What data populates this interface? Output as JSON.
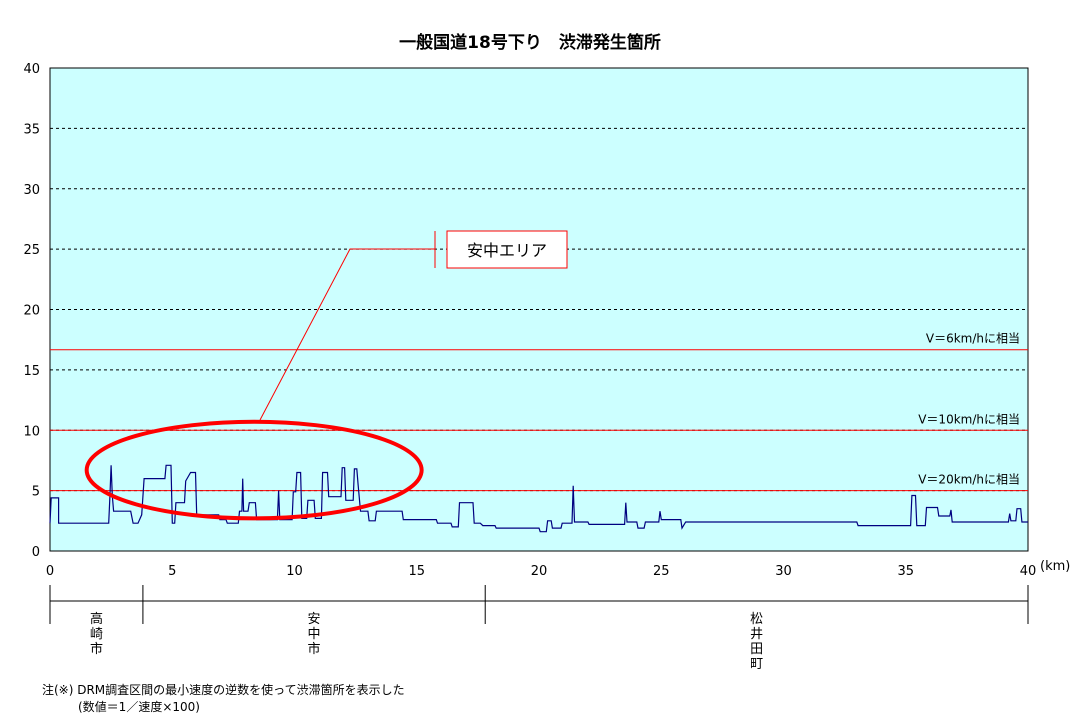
{
  "chart_data": {
    "type": "line",
    "title": "一般国道18号下り　渋滞発生箇所",
    "xlabel": "",
    "ylabel": "",
    "x_unit": "(km)",
    "xlim": [
      0,
      40
    ],
    "ylim": [
      0,
      40
    ],
    "x_ticks": [
      0,
      5,
      10,
      15,
      20,
      25,
      30,
      35,
      40
    ],
    "y_ticks": [
      0,
      5,
      10,
      15,
      20,
      25,
      30,
      35,
      40
    ],
    "grid": "horizontal dashed",
    "plot_background": "#ccffff",
    "series": [
      {
        "color": "#000080",
        "points": [
          [
            0.0,
            2.3
          ],
          [
            0.05,
            4.4
          ],
          [
            0.35,
            4.4
          ],
          [
            0.35,
            2.3
          ],
          [
            2.4,
            2.3
          ],
          [
            2.45,
            4.5
          ],
          [
            2.5,
            7.1
          ],
          [
            2.55,
            4.6
          ],
          [
            2.6,
            3.3
          ],
          [
            3.3,
            3.3
          ],
          [
            3.4,
            2.3
          ],
          [
            3.6,
            2.3
          ],
          [
            3.75,
            3.0
          ],
          [
            3.85,
            6.0
          ],
          [
            4.7,
            6.0
          ],
          [
            4.75,
            7.1
          ],
          [
            4.95,
            7.1
          ],
          [
            5.0,
            2.3
          ],
          [
            5.1,
            2.3
          ],
          [
            5.15,
            4.0
          ],
          [
            5.5,
            4.0
          ],
          [
            5.55,
            5.8
          ],
          [
            5.75,
            6.5
          ],
          [
            5.95,
            6.5
          ],
          [
            6.0,
            3.0
          ],
          [
            6.9,
            3.0
          ],
          [
            6.95,
            2.6
          ],
          [
            7.2,
            2.6
          ],
          [
            7.25,
            2.3
          ],
          [
            7.7,
            2.3
          ],
          [
            7.75,
            3.3
          ],
          [
            7.85,
            3.3
          ],
          [
            7.88,
            6.0
          ],
          [
            7.92,
            3.3
          ],
          [
            8.1,
            3.3
          ],
          [
            8.15,
            4.0
          ],
          [
            8.4,
            4.0
          ],
          [
            8.45,
            2.6
          ],
          [
            9.3,
            2.6
          ],
          [
            9.35,
            5.0
          ],
          [
            9.4,
            2.6
          ],
          [
            9.9,
            2.6
          ],
          [
            9.95,
            4.9
          ],
          [
            10.05,
            4.9
          ],
          [
            10.1,
            6.5
          ],
          [
            10.25,
            6.5
          ],
          [
            10.3,
            2.7
          ],
          [
            10.5,
            2.7
          ],
          [
            10.55,
            4.2
          ],
          [
            10.8,
            4.2
          ],
          [
            10.85,
            2.7
          ],
          [
            11.1,
            2.7
          ],
          [
            11.15,
            6.5
          ],
          [
            11.35,
            6.5
          ],
          [
            11.4,
            4.5
          ],
          [
            11.9,
            4.5
          ],
          [
            11.95,
            6.9
          ],
          [
            12.05,
            6.9
          ],
          [
            12.1,
            4.2
          ],
          [
            12.4,
            4.2
          ],
          [
            12.45,
            6.8
          ],
          [
            12.55,
            6.8
          ],
          [
            12.6,
            5.5
          ],
          [
            12.7,
            3.3
          ],
          [
            13.0,
            3.3
          ],
          [
            13.05,
            2.5
          ],
          [
            13.3,
            2.5
          ],
          [
            13.35,
            3.3
          ],
          [
            14.4,
            3.3
          ],
          [
            14.45,
            2.6
          ],
          [
            15.8,
            2.6
          ],
          [
            15.85,
            2.3
          ],
          [
            16.4,
            2.3
          ],
          [
            16.45,
            2.0
          ],
          [
            16.7,
            2.0
          ],
          [
            16.75,
            4.0
          ],
          [
            17.3,
            4.0
          ],
          [
            17.35,
            2.3
          ],
          [
            17.6,
            2.3
          ],
          [
            17.7,
            2.1
          ],
          [
            18.2,
            2.1
          ],
          [
            18.25,
            1.9
          ],
          [
            20.0,
            1.9
          ],
          [
            20.05,
            1.6
          ],
          [
            20.3,
            1.6
          ],
          [
            20.35,
            2.5
          ],
          [
            20.5,
            2.5
          ],
          [
            20.55,
            1.9
          ],
          [
            20.9,
            1.9
          ],
          [
            20.95,
            2.3
          ],
          [
            21.35,
            2.3
          ],
          [
            21.4,
            5.4
          ],
          [
            21.45,
            2.4
          ],
          [
            22.0,
            2.4
          ],
          [
            22.05,
            2.2
          ],
          [
            23.5,
            2.2
          ],
          [
            23.55,
            4.0
          ],
          [
            23.6,
            2.4
          ],
          [
            24.0,
            2.4
          ],
          [
            24.05,
            1.9
          ],
          [
            24.3,
            1.9
          ],
          [
            24.35,
            2.4
          ],
          [
            24.9,
            2.4
          ],
          [
            24.95,
            3.3
          ],
          [
            25.0,
            2.6
          ],
          [
            25.8,
            2.6
          ],
          [
            25.85,
            1.9
          ],
          [
            26.0,
            2.4
          ],
          [
            33.0,
            2.4
          ],
          [
            33.05,
            2.1
          ],
          [
            35.2,
            2.1
          ],
          [
            35.25,
            4.6
          ],
          [
            35.4,
            4.6
          ],
          [
            35.45,
            2.1
          ],
          [
            35.8,
            2.1
          ],
          [
            35.85,
            3.6
          ],
          [
            36.3,
            3.6
          ],
          [
            36.35,
            2.9
          ],
          [
            36.8,
            2.9
          ],
          [
            36.85,
            3.4
          ],
          [
            36.9,
            2.4
          ],
          [
            39.2,
            2.4
          ],
          [
            39.25,
            3.1
          ],
          [
            39.3,
            2.5
          ],
          [
            39.5,
            2.5
          ],
          [
            39.55,
            3.5
          ],
          [
            39.7,
            3.5
          ],
          [
            39.75,
            2.4
          ],
          [
            40.0,
            2.4
          ]
        ]
      }
    ],
    "reference_lines": [
      {
        "y": 16.67,
        "label": "V＝6km/hに相当",
        "color": "#ff0000"
      },
      {
        "y": 10,
        "label": "V＝10km/hに相当",
        "color": "#ff0000"
      },
      {
        "y": 5,
        "label": "V＝20km/hに相当",
        "color": "#ff0000"
      }
    ],
    "annotation": {
      "label": "安中エリア",
      "ellipse_x": [
        1.5,
        15.2
      ],
      "ellipse_y": [
        2.7,
        10.7
      ],
      "color": "#ff0000"
    },
    "municipalities": [
      {
        "name": "高崎市",
        "x_from": 0,
        "x_to": 3.8
      },
      {
        "name": "安中市",
        "x_from": 3.8,
        "x_to": 17.8
      },
      {
        "name": "松井田町",
        "x_from": 17.8,
        "x_to": 40
      }
    ]
  },
  "notes": [
    "注(※) DRM調査区間の最小速度の逆数を使って渋滞箇所を表示した",
    "　　　(数値＝1／速度×100)"
  ]
}
